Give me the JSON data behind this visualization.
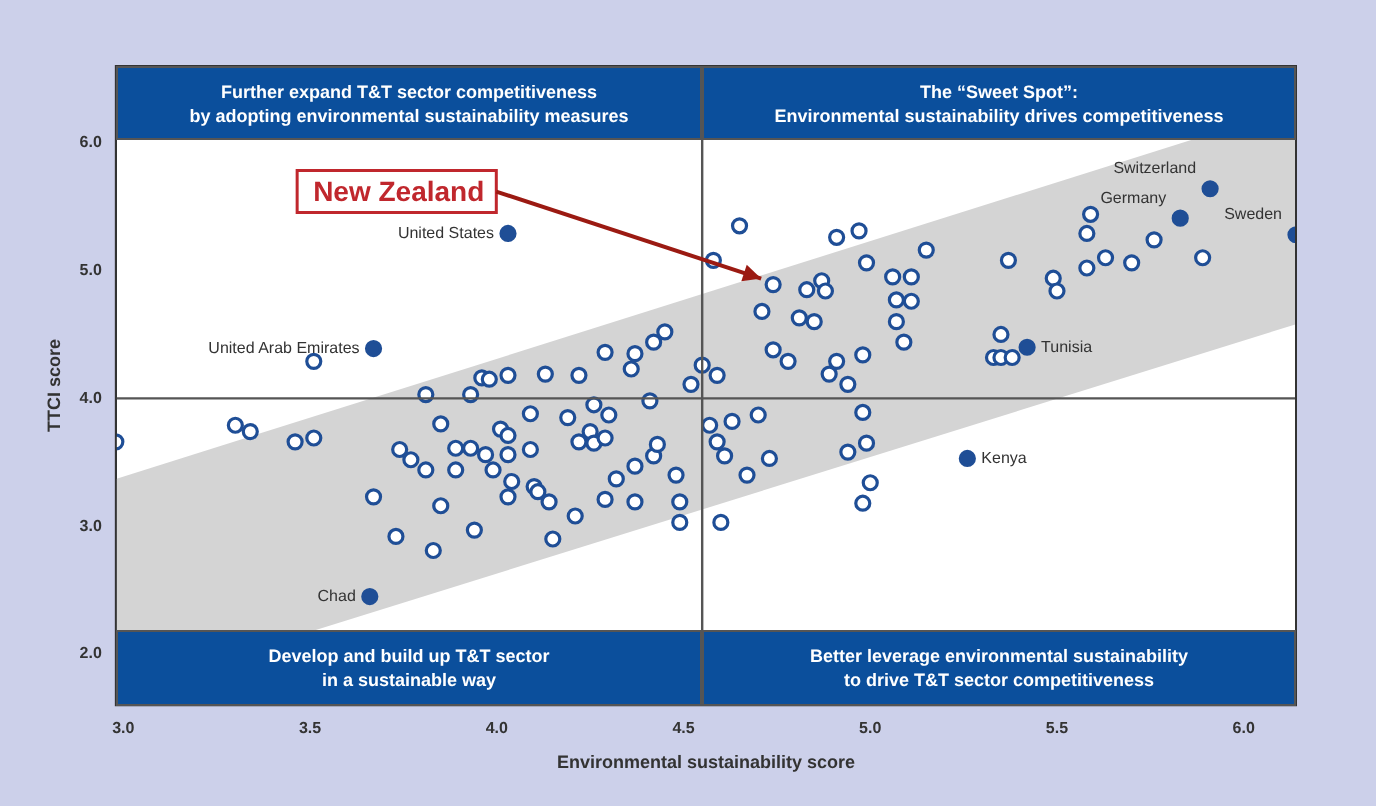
{
  "chart_data": {
    "type": "scatter",
    "xlabel": "Environmental sustainability score",
    "ylabel": "TTCI score",
    "xlim": [
      2.98,
      6.14
    ],
    "ylim": [
      1.6,
      6.6
    ],
    "xticks": [
      {
        "value": 3,
        "label": "3.0"
      },
      {
        "value": 3.5,
        "label": "3.5"
      },
      {
        "value": 4,
        "label": "4.0"
      },
      {
        "value": 4.5,
        "label": "4.5"
      },
      {
        "value": 5,
        "label": "5.0"
      },
      {
        "value": 5.5,
        "label": "5.5"
      },
      {
        "value": 6,
        "label": "6.0"
      }
    ],
    "yticks": [
      {
        "value": 2,
        "label": "2.0"
      },
      {
        "value": 3,
        "label": "3.0"
      },
      {
        "value": 4,
        "label": "4.0"
      },
      {
        "value": 5,
        "label": "5.0"
      },
      {
        "value": 6,
        "label": "6.0"
      }
    ],
    "grid": false,
    "legend": false,
    "ref_lines": [
      {
        "axis": "x",
        "value": 4.55,
        "color": "#555555"
      },
      {
        "axis": "y",
        "value": 4.0,
        "color": "#555555"
      }
    ],
    "series": [
      {
        "type": "area",
        "color": "#d4d4d4",
        "x": [
          2.98,
          6.14
        ],
        "values": [
          null,
          null
        ],
        "lower": [
          1.7,
          4.58
        ],
        "upper": [
          3.37,
          6.28
        ]
      },
      {
        "color": "#1f4e96",
        "x": [
          3.51,
          4.58,
          2.98,
          3.3,
          3.34,
          3.46,
          3.51,
          3.67,
          3.73,
          3.81,
          3.85,
          3.74,
          3.77,
          3.81,
          3.85,
          3.83,
          3.89,
          3.89,
          3.93,
          3.94,
          3.93,
          3.96,
          3.98,
          3.97,
          3.99,
          4.01,
          4.03,
          4.03,
          4.04,
          4.03,
          4.03,
          4.09,
          4.09,
          4.1,
          4.11,
          4.13,
          4.14,
          4.15,
          4.19,
          4.21,
          4.22,
          4.22,
          4.25,
          4.26,
          4.26,
          4.29,
          4.3,
          4.29,
          4.32,
          4.29,
          4.36,
          4.37,
          4.37,
          4.37,
          4.41,
          4.42,
          4.43,
          4.42,
          4.45,
          4.55,
          4.52,
          4.59,
          4.48,
          4.49,
          4.49,
          4.57,
          4.59,
          4.61,
          4.6,
          4.63,
          4.67,
          4.7,
          4.73,
          4.74,
          4.78,
          4.89,
          4.91,
          4.94,
          4.94,
          4.98,
          4.98,
          4.99,
          5.0,
          4.98,
          4.65,
          4.74,
          4.71,
          4.81,
          4.85,
          4.83,
          4.87,
          4.88,
          4.91,
          4.97,
          4.99,
          5.06,
          5.11,
          5.07,
          5.11,
          5.07,
          5.09,
          5.15,
          5.37,
          5.49,
          5.5,
          5.35,
          5.33,
          5.35,
          5.38,
          5.58,
          5.59,
          5.58,
          5.63,
          5.7,
          5.76,
          5.89
        ],
        "values": [
          4.29,
          5.08,
          3.66,
          3.79,
          3.74,
          3.66,
          3.69,
          3.23,
          2.92,
          4.03,
          3.8,
          3.6,
          3.52,
          3.44,
          3.16,
          2.81,
          3.44,
          3.61,
          3.61,
          2.97,
          4.03,
          4.16,
          4.15,
          3.56,
          3.44,
          3.76,
          3.71,
          3.56,
          3.35,
          3.23,
          4.18,
          3.88,
          3.6,
          3.31,
          3.27,
          4.19,
          3.19,
          2.9,
          3.85,
          3.08,
          4.18,
          3.66,
          3.74,
          3.65,
          3.95,
          3.69,
          3.87,
          3.21,
          3.37,
          4.36,
          4.23,
          4.35,
          3.47,
          3.19,
          3.98,
          3.55,
          3.64,
          4.44,
          4.52,
          4.26,
          4.11,
          4.18,
          3.4,
          3.19,
          3.03,
          3.79,
          3.66,
          3.55,
          3.03,
          3.82,
          3.4,
          3.87,
          3.53,
          4.38,
          4.29,
          4.19,
          4.29,
          4.11,
          3.58,
          3.89,
          4.34,
          3.65,
          3.34,
          3.18,
          5.35,
          4.89,
          4.68,
          4.63,
          4.6,
          4.85,
          4.92,
          4.84,
          5.26,
          5.31,
          5.06,
          4.95,
          4.95,
          4.77,
          4.76,
          4.6,
          4.44,
          5.16,
          5.08,
          4.94,
          4.84,
          4.5,
          4.32,
          4.32,
          4.32,
          5.29,
          5.44,
          5.02,
          5.1,
          5.06,
          5.24,
          5.1
        ]
      },
      {
        "marker": "circle",
        "color": "#1f4e96",
        "x": [
          4.03,
          3.67,
          3.66,
          5.42,
          5.26,
          5.83,
          5.91,
          6.14
        ],
        "values": [
          5.29,
          4.39,
          2.45,
          4.4,
          3.53,
          5.41,
          5.64,
          5.28
        ]
      }
    ],
    "annotations": [
      "Further expand T&T sector competitiveness\nby adopting environmental sustainability measures",
      "The “Sweet Spot”:\nEnvironmental sustainability drives competitiveness",
      "Develop and build up T&T sector\nin a sustainable way",
      "Better leverage environmental sustainability\nto drive T&T sector competitiveness",
      {
        "text": "United States",
        "x": 4.03,
        "y": 5.29
      },
      {
        "text": "United Arab Emirates",
        "x": 3.67,
        "y": 4.39
      },
      {
        "text": "Chad",
        "x": 3.66,
        "y": 2.45
      },
      {
        "text": "Tunisia",
        "x": 5.42,
        "y": 4.4
      },
      {
        "text": "Kenya",
        "x": 5.26,
        "y": 3.53
      },
      {
        "text": "Germany",
        "x": 5.83,
        "y": 5.41
      },
      {
        "text": "Switzerland",
        "x": 5.91,
        "y": 5.64
      },
      {
        "text": "Sweden",
        "x": 6.14,
        "y": 5.28
      },
      {
        "text": "New Zealand",
        "x": 4.74,
        "y": 4.89
      }
    ]
  }
}
